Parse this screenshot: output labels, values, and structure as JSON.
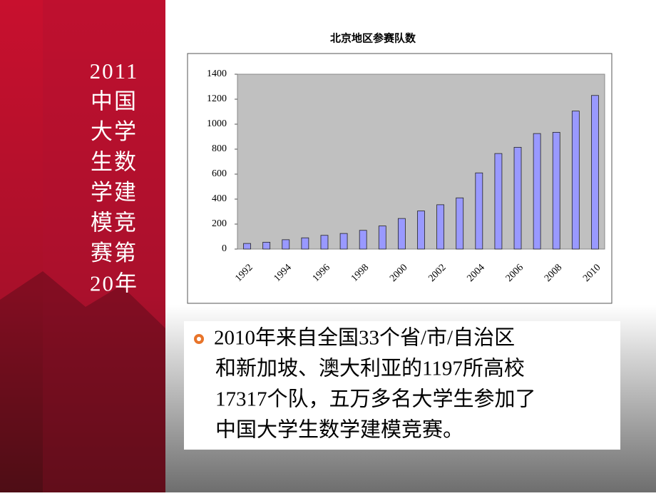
{
  "sidebar": {
    "lines": [
      "2011",
      "中国",
      "大学",
      "生数",
      "学建",
      "模竞",
      "赛第",
      "20年"
    ]
  },
  "chart_data": {
    "type": "bar",
    "title": "北京地区参赛队数",
    "categories": [
      "1992",
      null,
      "1994",
      null,
      "1996",
      null,
      "1998",
      null,
      "2000",
      null,
      "2002",
      null,
      "2004",
      null,
      "2006",
      null,
      "2008",
      null,
      "2010"
    ],
    "values": [
      45,
      55,
      75,
      90,
      110,
      125,
      150,
      185,
      245,
      305,
      355,
      410,
      610,
      765,
      815,
      925,
      935,
      1105,
      1230
    ],
    "color": "#9999ff",
    "ylim": [
      0,
      1400
    ],
    "yticks": [
      0,
      200,
      400,
      600,
      800,
      1000,
      1200,
      1400
    ],
    "grid": false
  },
  "bullet": {
    "lines": [
      "2010年来自全国33个省/市/自治区",
      "和新加坡、澳大利亚的1197所高校",
      "17317个队，五万多名大学生参加了",
      "中国大学生数学建模竞赛。"
    ]
  }
}
